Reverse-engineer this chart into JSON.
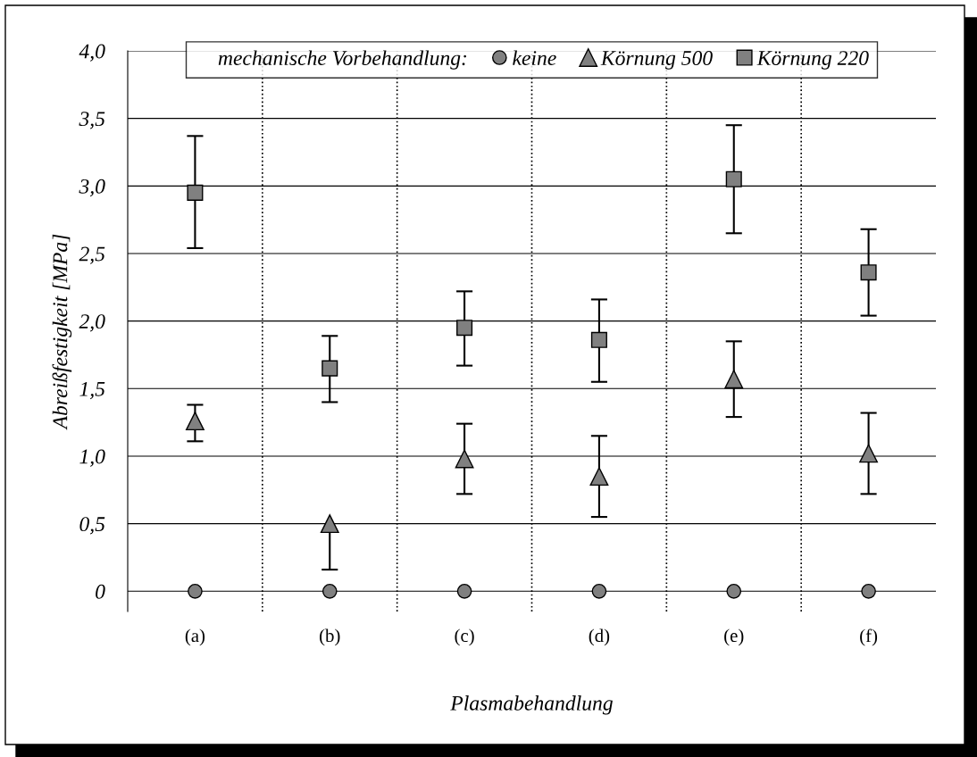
{
  "chart_data": {
    "type": "scatter",
    "xlabel": "Plasmabehandlung",
    "ylabel": "Abreißfestigkeit [MPa]",
    "legend_title": "mechanische Vorbehandlung:",
    "categories": [
      "(a)",
      "(b)",
      "(c)",
      "(d)",
      "(e)",
      "(f)"
    ],
    "series": [
      {
        "name": "keine",
        "color": "#808080",
        "marker": "circle",
        "values": [
          0,
          0,
          0,
          0,
          0,
          0
        ]
      },
      {
        "name": "Körnung 500",
        "color": "#808080",
        "marker": "triangle",
        "values": [
          1.26,
          0.5,
          0.98,
          0.85,
          1.57,
          1.02
        ],
        "errors": [
          [
            1.11,
            1.38
          ],
          [
            0.16,
            0.5
          ],
          [
            0.72,
            1.24
          ],
          [
            0.55,
            1.15
          ],
          [
            1.29,
            1.85
          ],
          [
            0.72,
            1.32
          ]
        ]
      },
      {
        "name": "Körnung 220",
        "color": "#808080",
        "marker": "square",
        "values": [
          2.95,
          1.65,
          1.95,
          1.86,
          3.05,
          2.36
        ],
        "errors": [
          [
            2.54,
            3.37
          ],
          [
            1.4,
            1.89
          ],
          [
            1.67,
            2.22
          ],
          [
            1.55,
            2.16
          ],
          [
            2.65,
            3.45
          ],
          [
            2.04,
            2.68
          ]
        ]
      }
    ],
    "ylim": [
      -0.15,
      4.0
    ],
    "yticks": [
      0,
      {
        "value": 0.5,
        "label": "0,5"
      },
      {
        "value": 1,
        "label": "1,0"
      },
      {
        "value": 1.5,
        "label": "1,5"
      },
      {
        "value": 2,
        "label": "2,0"
      },
      {
        "value": 2.5,
        "label": "2,5"
      },
      {
        "value": 3,
        "label": "3,0"
      },
      {
        "value": 3.5,
        "label": "3,5"
      },
      {
        "value": 4,
        "label": "4,0"
      }
    ],
    "grid": true,
    "legend": "top"
  }
}
